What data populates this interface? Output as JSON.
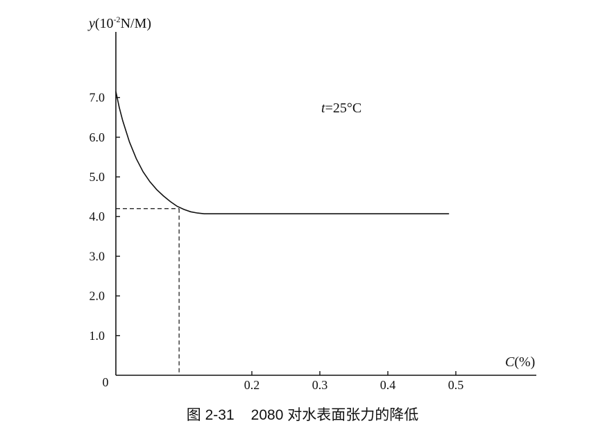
{
  "chart_data": {
    "type": "line",
    "ylabel_var": "y",
    "ylabel_unit": "(10",
    "ylabel_exp": "-2",
    "ylabel_rest": "N/M)",
    "xlabel_var": "C",
    "xlabel_unit": "(%)",
    "origin_label": "0",
    "annotation_var": "t",
    "annotation_value": "=25°C",
    "ylim": [
      0,
      8.0
    ],
    "xlim": [
      0,
      0.62
    ],
    "yticks": [
      {
        "value": 1.0,
        "label": "1.0"
      },
      {
        "value": 2.0,
        "label": "2.0"
      },
      {
        "value": 3.0,
        "label": "3.0"
      },
      {
        "value": 4.0,
        "label": "4.0"
      },
      {
        "value": 5.0,
        "label": "5.0"
      },
      {
        "value": 6.0,
        "label": "6.0"
      },
      {
        "value": 7.0,
        "label": "7.0"
      }
    ],
    "xticks": [
      {
        "value": 0.2,
        "label": "0.2"
      },
      {
        "value": 0.3,
        "label": "0.3"
      },
      {
        "value": 0.4,
        "label": "0.4"
      },
      {
        "value": 0.5,
        "label": "0.5"
      }
    ],
    "series": [
      {
        "x": [
          0.0,
          0.005,
          0.01,
          0.02,
          0.03,
          0.04,
          0.05,
          0.06,
          0.07,
          0.08,
          0.09,
          0.1,
          0.11,
          0.12,
          0.13,
          0.2,
          0.3,
          0.4,
          0.49
        ],
        "y": [
          7.15,
          6.75,
          6.42,
          5.88,
          5.46,
          5.13,
          4.88,
          4.68,
          4.52,
          4.38,
          4.26,
          4.18,
          4.12,
          4.09,
          4.07,
          4.07,
          4.07,
          4.07,
          4.07
        ]
      }
    ],
    "reference_point": {
      "x": 0.093,
      "y": 4.2
    },
    "grid": false
  },
  "caption": {
    "figure_number": "图 2-31",
    "text": "2080 对水表面张力的降低"
  },
  "colors": {
    "line": "#111111",
    "text": "#111111",
    "background": "#ffffff"
  }
}
